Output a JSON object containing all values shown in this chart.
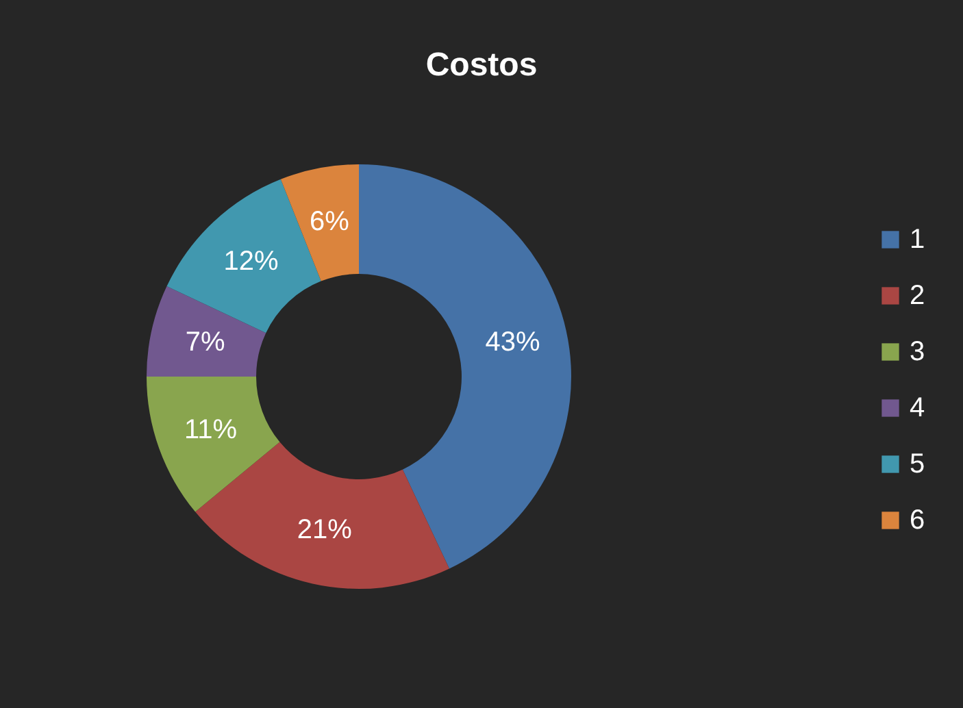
{
  "chart_data": {
    "type": "donut",
    "title": "Costos",
    "categories": [
      "1",
      "2",
      "3",
      "4",
      "5",
      "6"
    ],
    "values": [
      43,
      21,
      11,
      7,
      12,
      6
    ],
    "colors": [
      "#4572a7",
      "#aa4643",
      "#89a54e",
      "#71588f",
      "#4198af",
      "#db843d"
    ],
    "value_labels": [
      "43%",
      "21%",
      "11%",
      "7%",
      "12%",
      "6%"
    ],
    "legend": "right"
  }
}
